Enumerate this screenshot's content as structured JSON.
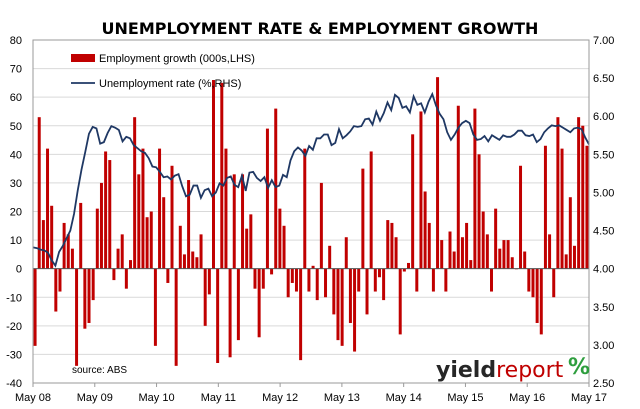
{
  "chart_data": {
    "type": "bar",
    "title": "UNEMPLOYMENT RATE & EMPLOYMENT GROWTH",
    "x_ticks": [
      "May 08",
      "May 09",
      "May 10",
      "May 11",
      "May 12",
      "May 13",
      "May 14",
      "May 15",
      "May 16",
      "May 17"
    ],
    "left_axis": {
      "min": -40,
      "max": 80,
      "ticks": [
        "-40",
        "-30",
        "-20",
        "-10",
        "0",
        "10",
        "20",
        "30",
        "40",
        "50",
        "60",
        "70",
        "80"
      ]
    },
    "right_axis": {
      "min": 2.5,
      "max": 7.0,
      "ticks": [
        "2.50",
        "3.00",
        "3.50",
        "4.00",
        "4.50",
        "5.00",
        "5.50",
        "6.00",
        "6.50",
        "7.00"
      ]
    },
    "grid": true,
    "legend_position": "top-left",
    "source": "source: ABS",
    "logo": {
      "text_dark": "yield",
      "text_red": "report",
      "symbol": "%"
    },
    "colors": {
      "bars": "#c00000",
      "line": "#1f3864",
      "grid": "#d9d9d9"
    },
    "series": [
      {
        "name": "Employment growth (000s,LHS)",
        "type": "bar",
        "axis": "left",
        "values": [
          -27,
          53,
          17,
          42,
          22,
          -15,
          -8,
          16,
          12,
          7,
          -34,
          23,
          -21,
          -19,
          -11,
          21,
          30,
          41,
          38,
          -4,
          7,
          12,
          -7,
          3,
          53,
          33,
          42,
          18,
          20,
          -27,
          42,
          25,
          -5,
          36,
          -34,
          15,
          5,
          31,
          6,
          4,
          12,
          -20,
          -9,
          66,
          -33,
          65,
          42,
          -31,
          33,
          -25,
          33,
          14,
          19,
          -7,
          -24,
          -7,
          49,
          -2,
          56,
          21,
          15,
          -10,
          -5,
          -8,
          -32,
          42,
          -8,
          1,
          -11,
          30,
          -10,
          8,
          -16,
          -25,
          -27,
          11,
          -19,
          -29,
          -8,
          35,
          -16,
          41,
          -8,
          -3,
          -11,
          17,
          16,
          11,
          -23,
          -1,
          2,
          47,
          -8,
          55,
          27,
          16,
          -8,
          67,
          10,
          -8,
          13,
          6,
          57,
          11,
          16,
          3,
          56,
          40,
          20,
          12,
          -8,
          21,
          7,
          10,
          10,
          4,
          0,
          36,
          6,
          -8,
          -10,
          -19,
          -23,
          43,
          12,
          -10,
          53,
          42,
          5,
          25,
          8,
          53,
          50,
          43
        ]
      },
      {
        "name": "Unemployment rate (%,RHS)",
        "type": "line",
        "axis": "right",
        "values": [
          4.28,
          4.27,
          4.25,
          4.24,
          4.21,
          4.11,
          4.04,
          4.22,
          4.3,
          4.4,
          4.5,
          4.72,
          5.03,
          5.3,
          5.53,
          5.77,
          5.86,
          5.84,
          5.64,
          5.66,
          5.78,
          5.87,
          5.85,
          5.82,
          5.67,
          5.73,
          5.71,
          5.62,
          5.58,
          5.54,
          5.52,
          5.45,
          5.34,
          5.33,
          5.27,
          5.2,
          5.21,
          5.17,
          5.22,
          5.24,
          5.08,
          4.95,
          4.97,
          5.09,
          5.09,
          4.93,
          5.03,
          5.05,
          4.95,
          5.0,
          5.12,
          5.09,
          5.19,
          5.21,
          5.1,
          5.07,
          5.22,
          5.02,
          5.26,
          5.27,
          5.19,
          5.15,
          5.2,
          5.06,
          5.16,
          5.07,
          5.09,
          5.23,
          5.2,
          5.42,
          5.54,
          5.59,
          5.55,
          5.48,
          5.61,
          5.56,
          5.71,
          5.71,
          5.76,
          5.76,
          5.62,
          5.65,
          5.83,
          5.71,
          5.75,
          5.8,
          5.87,
          5.86,
          5.87,
          5.96,
          5.97,
          5.89,
          6.06,
          5.94,
          6.04,
          6.18,
          6.08,
          6.28,
          6.24,
          6.11,
          6.13,
          6.05,
          6.26,
          6.15,
          6.17,
          6.05,
          6.19,
          6.29,
          6.14,
          6.03,
          5.96,
          5.79,
          5.69,
          5.76,
          5.85,
          5.91,
          5.94,
          5.91,
          5.76,
          5.69,
          5.7,
          5.74,
          5.67,
          5.75,
          5.72,
          5.69,
          5.75,
          5.73,
          5.73,
          5.76,
          5.81,
          5.81,
          5.75,
          5.74,
          5.76,
          5.66,
          5.7,
          5.79,
          5.84,
          5.88,
          5.87,
          5.88,
          5.85,
          5.82,
          5.79,
          5.84,
          5.85,
          5.83,
          5.72,
          5.63
        ]
      }
    ]
  }
}
